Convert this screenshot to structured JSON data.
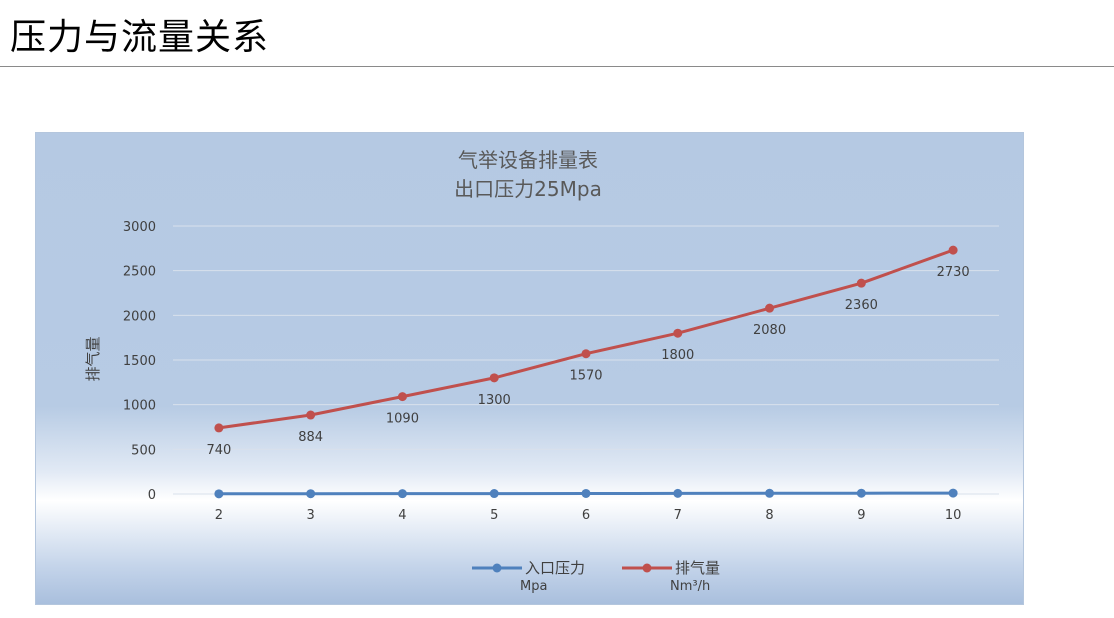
{
  "page": {
    "title": "压力与流量关系"
  },
  "chart_data": {
    "type": "line",
    "title": "气举设备排量表",
    "subtitle": "出口压力25Mpa",
    "ylabel": "排气量",
    "xlabel": "",
    "ylim": [
      0,
      3000
    ],
    "y_ticks": [
      "0",
      "500",
      "1000",
      "1500",
      "2000",
      "2500",
      "3000"
    ],
    "categories": [
      "2",
      "3",
      "4",
      "5",
      "6",
      "7",
      "8",
      "9",
      "10"
    ],
    "grid": true,
    "legend": "bottom",
    "series": [
      {
        "name": "入口压力",
        "unit": "Mpa",
        "color": "#4f81bd",
        "values": [
          2,
          3,
          4,
          5,
          6,
          7,
          8,
          9,
          10
        ],
        "show_labels": false
      },
      {
        "name": "排气量",
        "unit": "Nm³/h",
        "color": "#c0504d",
        "values": [
          740,
          884,
          1090,
          1300,
          1570,
          1800,
          2080,
          2360,
          2730
        ],
        "show_labels": true
      }
    ]
  }
}
